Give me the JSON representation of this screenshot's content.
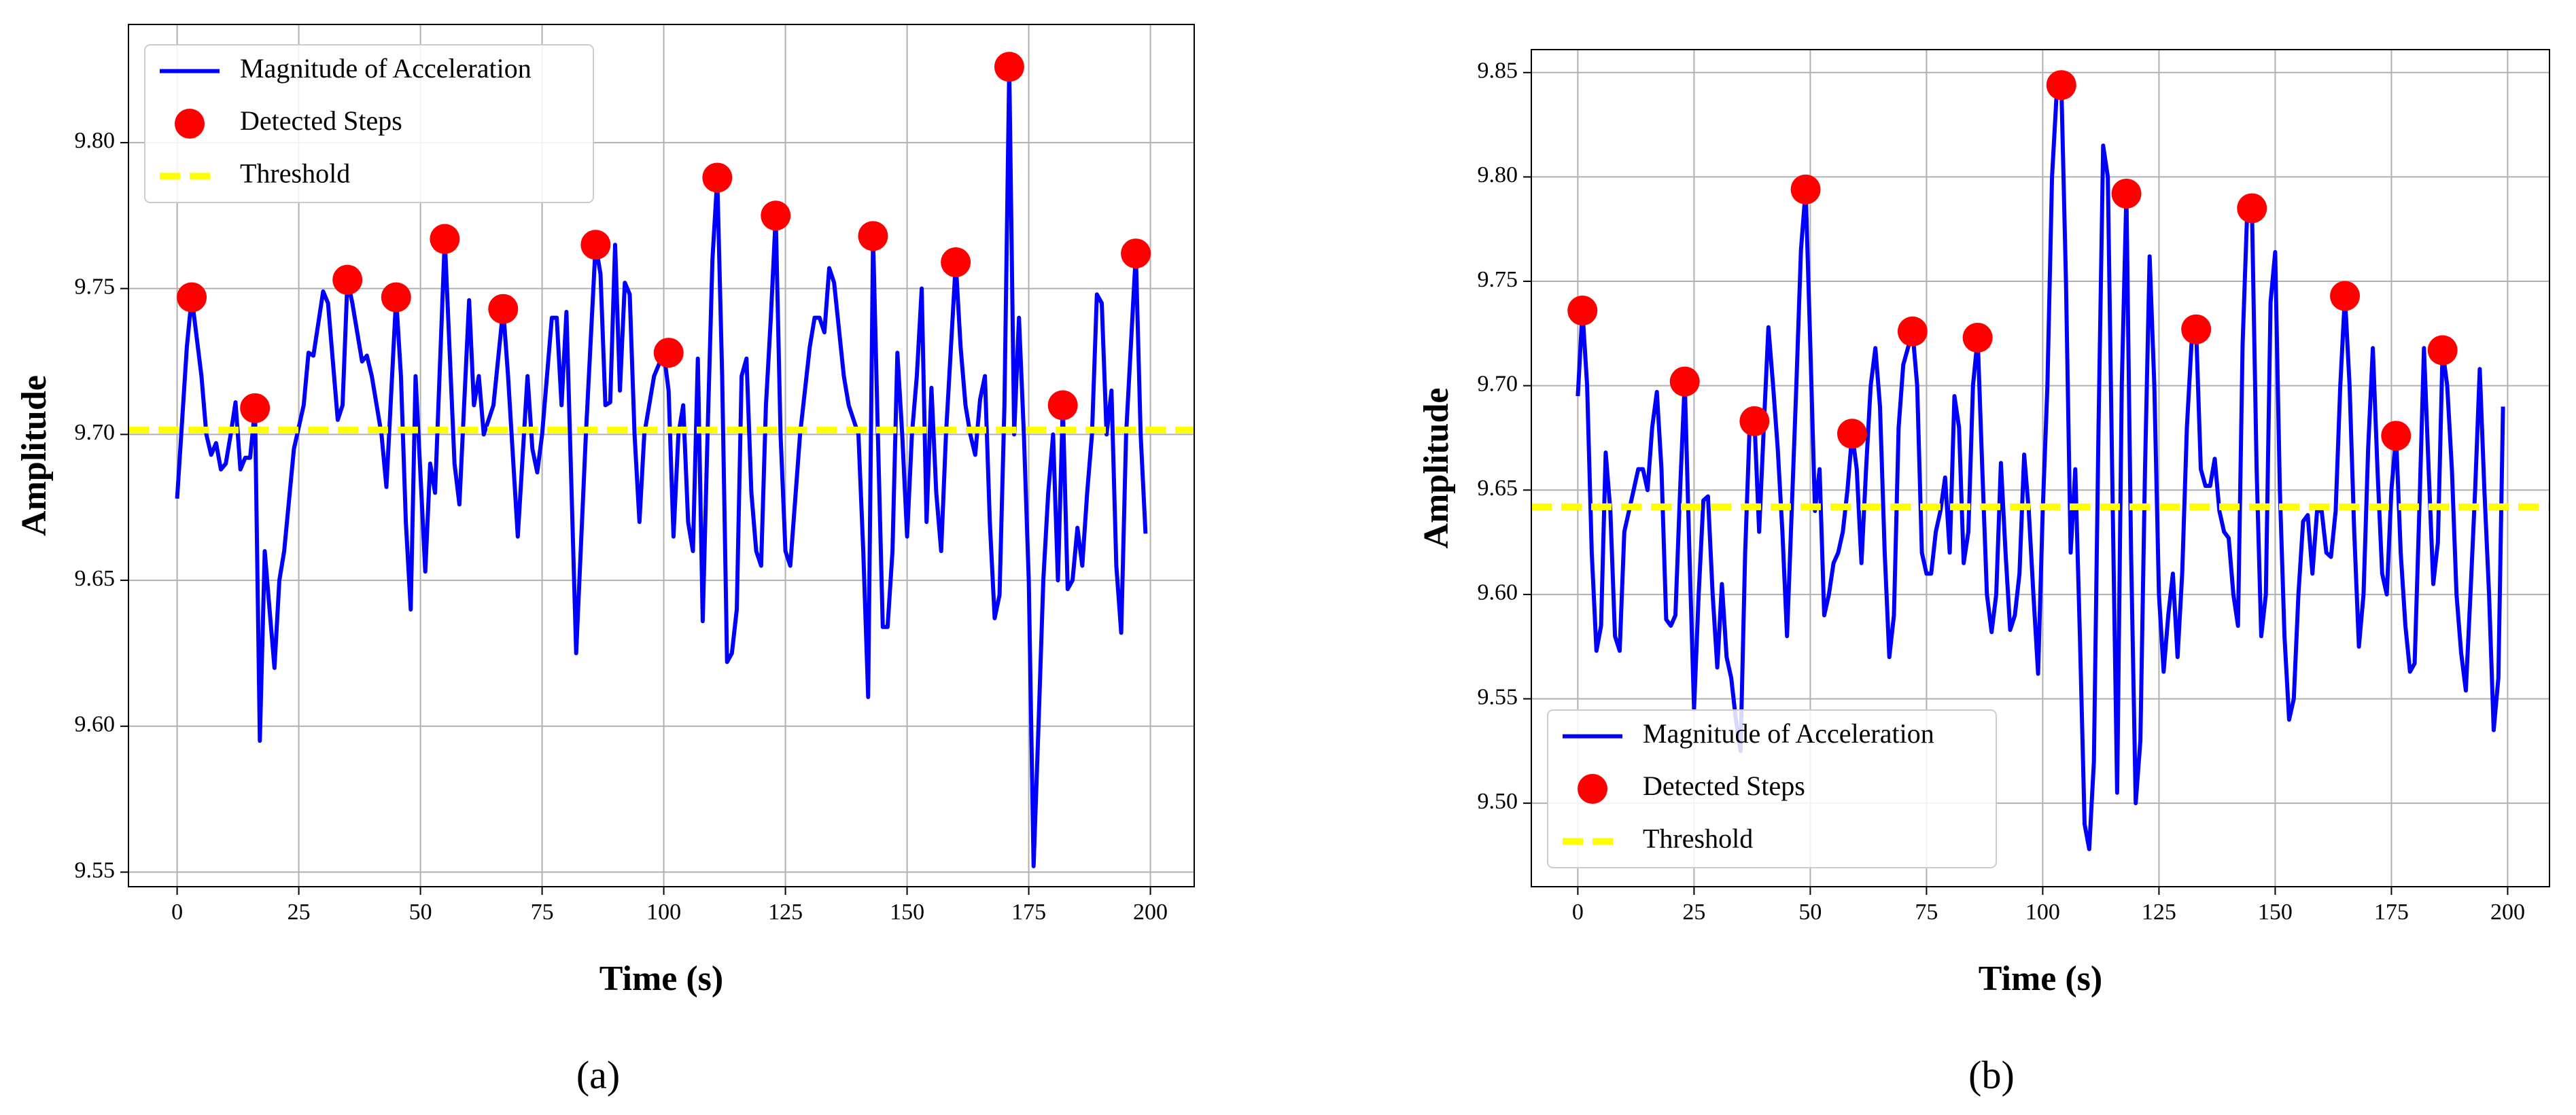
{
  "chart_data": [
    {
      "type": "line",
      "panel_label": "(a)",
      "xlabel": "Time (s)",
      "ylabel": "Amplitude",
      "xlim": [
        -10,
        209
      ],
      "ylim": [
        9.545,
        9.8405
      ],
      "xticks": [
        0,
        25,
        50,
        75,
        100,
        125,
        150,
        175,
        200
      ],
      "yticks": [
        9.55,
        {
          "value": 9.6,
          "label": "9.60"
        },
        9.65,
        {
          "value": 9.7,
          "label": "9.70"
        },
        9.75,
        {
          "value": 9.8,
          "label": "9.80"
        }
      ],
      "grid": true,
      "legend": "upper left",
      "series": [
        {
          "name": "Magnitude of Acceleration",
          "color": "#0000ff",
          "x": [
            0,
            2,
            3,
            5,
            6,
            7,
            8,
            9,
            10,
            11,
            12,
            13,
            14,
            15,
            16,
            17,
            18,
            19,
            20,
            21,
            22,
            24,
            26,
            27,
            28,
            30,
            31,
            33,
            34,
            35,
            36,
            38,
            39,
            40,
            42,
            43,
            45,
            46,
            47,
            48,
            49,
            51,
            52,
            53,
            55,
            57,
            58,
            60,
            61,
            62,
            63,
            65,
            67,
            68,
            70,
            72,
            73,
            74,
            75,
            77,
            78,
            79,
            80,
            82,
            84,
            86,
            87,
            88,
            89,
            90,
            91,
            92,
            93,
            94,
            95,
            96,
            98,
            100,
            101,
            102,
            103,
            104,
            105,
            106,
            107,
            108,
            109,
            110,
            111,
            112,
            113,
            114,
            115,
            116,
            117,
            118,
            119,
            120,
            121,
            122,
            123,
            124,
            125,
            126,
            128,
            130,
            131,
            132,
            133,
            134,
            135,
            137,
            138,
            140,
            141,
            142,
            143,
            144,
            145,
            146,
            147,
            148,
            149,
            150,
            151,
            152,
            153,
            154,
            155,
            156,
            157,
            158,
            160,
            161,
            162,
            163,
            164,
            165,
            166,
            167,
            168,
            169,
            170,
            171,
            172,
            173,
            174,
            175,
            176,
            177,
            178,
            179,
            180,
            181,
            182,
            183,
            184,
            185,
            186,
            187,
            188,
            189,
            190,
            191,
            192,
            193,
            194,
            195,
            197,
            198,
            199
          ],
          "values": [
            9.678,
            9.73,
            9.747,
            9.72,
            9.7,
            9.693,
            9.697,
            9.688,
            9.69,
            9.7,
            9.711,
            9.688,
            9.692,
            9.692,
            9.709,
            9.595,
            9.66,
            9.64,
            9.62,
            9.65,
            9.66,
            9.695,
            9.71,
            9.728,
            9.727,
            9.749,
            9.745,
            9.705,
            9.71,
            9.753,
            9.745,
            9.725,
            9.727,
            9.72,
            9.7,
            9.682,
            9.747,
            9.72,
            9.67,
            9.64,
            9.72,
            9.653,
            9.69,
            9.68,
            9.767,
            9.69,
            9.676,
            9.746,
            9.71,
            9.72,
            9.7,
            9.71,
            9.743,
            9.72,
            9.665,
            9.72,
            9.695,
            9.687,
            9.7,
            9.74,
            9.74,
            9.71,
            9.742,
            9.625,
            9.7,
            9.765,
            9.755,
            9.71,
            9.711,
            9.765,
            9.715,
            9.752,
            9.748,
            9.7,
            9.67,
            9.7,
            9.72,
            9.728,
            9.715,
            9.665,
            9.7,
            9.71,
            9.67,
            9.66,
            9.726,
            9.636,
            9.7,
            9.76,
            9.788,
            9.72,
            9.622,
            9.625,
            9.64,
            9.72,
            9.726,
            9.68,
            9.66,
            9.655,
            9.71,
            9.74,
            9.775,
            9.7,
            9.66,
            9.655,
            9.7,
            9.73,
            9.74,
            9.74,
            9.735,
            9.757,
            9.752,
            9.72,
            9.71,
            9.7,
            9.66,
            9.61,
            9.768,
            9.7,
            9.634,
            9.634,
            9.66,
            9.728,
            9.7,
            9.665,
            9.7,
            9.72,
            9.75,
            9.67,
            9.716,
            9.68,
            9.66,
            9.7,
            9.759,
            9.73,
            9.71,
            9.7,
            9.693,
            9.712,
            9.72,
            9.67,
            9.637,
            9.645,
            9.71,
            9.826,
            9.7,
            9.74,
            9.7,
            9.65,
            9.552,
            9.6,
            9.65,
            9.68,
            9.7,
            9.65,
            9.71,
            9.647,
            9.65,
            9.668,
            9.655,
            9.68,
            9.7,
            9.748,
            9.745,
            9.7,
            9.715,
            9.655,
            9.632,
            9.7,
            9.762,
            9.7,
            9.666
          ]
        },
        {
          "name": "Detected Steps",
          "color": "#ff0000",
          "x": [
            3,
            16,
            35,
            45,
            55,
            67,
            86,
            101,
            111,
            123,
            143,
            160,
            171,
            182,
            197
          ],
          "values": [
            9.747,
            9.709,
            9.753,
            9.747,
            9.767,
            9.743,
            9.765,
            9.728,
            9.788,
            9.775,
            9.768,
            9.759,
            9.826,
            9.71,
            9.762
          ]
        },
        {
          "name": "Threshold",
          "color": "#ffff00",
          "value": 9.7015
        }
      ]
    },
    {
      "type": "line",
      "panel_label": "(b)",
      "xlabel": "Time (s)",
      "ylabel": "Amplitude",
      "xlim": [
        -10,
        209
      ],
      "ylim": [
        9.46,
        9.861
      ],
      "xticks": [
        0,
        25,
        50,
        75,
        100,
        125,
        150,
        175,
        200
      ],
      "yticks": [
        {
          "value": 9.5,
          "label": "9.50"
        },
        9.55,
        {
          "value": 9.6,
          "label": "9.60"
        },
        9.65,
        {
          "value": 9.7,
          "label": "9.70"
        },
        9.75,
        {
          "value": 9.8,
          "label": "9.80"
        },
        9.85
      ],
      "grid": true,
      "legend": "lower left",
      "series": [
        {
          "name": "Magnitude of Acceleration",
          "color": "#0000ff",
          "x": [
            0,
            1,
            2,
            3,
            4,
            5,
            6,
            7,
            8,
            9,
            10,
            12,
            13,
            14,
            15,
            16,
            17,
            18,
            19,
            20,
            21,
            22,
            23,
            24,
            25,
            26,
            27,
            28,
            29,
            30,
            31,
            32,
            33,
            34,
            35,
            36,
            37,
            38,
            39,
            40,
            41,
            42,
            43,
            44,
            45,
            46,
            47,
            48,
            49,
            50,
            51,
            52,
            53,
            54,
            55,
            56,
            57,
            58,
            59,
            60,
            61,
            62,
            63,
            64,
            65,
            66,
            67,
            68,
            69,
            70,
            72,
            73,
            74,
            75,
            76,
            77,
            78,
            79,
            80,
            81,
            82,
            83,
            84,
            85,
            86,
            87,
            88,
            89,
            90,
            91,
            92,
            93,
            94,
            95,
            96,
            97,
            98,
            99,
            100,
            101,
            102,
            103,
            104,
            105,
            106,
            107,
            108,
            109,
            110,
            111,
            112,
            113,
            114,
            115,
            116,
            117,
            118,
            119,
            120,
            121,
            122,
            123,
            124,
            125,
            126,
            127,
            128,
            129,
            130,
            131,
            132,
            133,
            134,
            135,
            136,
            137,
            138,
            139,
            140,
            141,
            142,
            143,
            144,
            145,
            146,
            147,
            148,
            149,
            150,
            151,
            152,
            153,
            154,
            155,
            156,
            157,
            158,
            159,
            160,
            161,
            162,
            163,
            164,
            165,
            166,
            167,
            168,
            169,
            170,
            171,
            172,
            173,
            174,
            175,
            176,
            177,
            178,
            179,
            180,
            181,
            182,
            183,
            184,
            185,
            186,
            187,
            188,
            189,
            190,
            191,
            192,
            193,
            194,
            195,
            196,
            197,
            198,
            199
          ],
          "values": [
            9.695,
            9.736,
            9.7,
            9.62,
            9.573,
            9.585,
            9.668,
            9.64,
            9.58,
            9.573,
            9.63,
            9.65,
            9.66,
            9.66,
            9.65,
            9.68,
            9.697,
            9.66,
            9.588,
            9.585,
            9.59,
            9.65,
            9.702,
            9.62,
            9.545,
            9.6,
            9.645,
            9.647,
            9.6,
            9.565,
            9.605,
            9.57,
            9.56,
            9.54,
            9.525,
            9.62,
            9.683,
            9.683,
            9.63,
            9.68,
            9.728,
            9.7,
            9.67,
            9.63,
            9.58,
            9.64,
            9.7,
            9.765,
            9.794,
            9.72,
            9.64,
            9.66,
            9.59,
            9.6,
            9.615,
            9.62,
            9.63,
            9.65,
            9.677,
            9.66,
            9.615,
            9.66,
            9.7,
            9.718,
            9.69,
            9.62,
            9.57,
            9.59,
            9.68,
            9.71,
            9.726,
            9.7,
            9.62,
            9.61,
            9.61,
            9.63,
            9.64,
            9.656,
            9.62,
            9.695,
            9.68,
            9.615,
            9.63,
            9.7,
            9.723,
            9.66,
            9.6,
            9.582,
            9.6,
            9.663,
            9.62,
            9.583,
            9.59,
            9.61,
            9.667,
            9.64,
            9.6,
            9.562,
            9.64,
            9.7,
            9.8,
            9.84,
            9.844,
            9.75,
            9.62,
            9.66,
            9.58,
            9.49,
            9.478,
            9.52,
            9.68,
            9.815,
            9.8,
            9.65,
            9.505,
            9.7,
            9.792,
            9.62,
            9.5,
            9.53,
            9.66,
            9.762,
            9.7,
            9.6,
            9.563,
            9.59,
            9.61,
            9.57,
            9.61,
            9.68,
            9.72,
            9.727,
            9.66,
            9.652,
            9.652,
            9.665,
            9.64,
            9.63,
            9.627,
            9.6,
            9.585,
            9.72,
            9.785,
            9.785,
            9.66,
            9.58,
            9.6,
            9.74,
            9.764,
            9.65,
            9.58,
            9.54,
            9.55,
            9.6,
            9.635,
            9.638,
            9.61,
            9.64,
            9.64,
            9.62,
            9.618,
            9.64,
            9.7,
            9.743,
            9.7,
            9.63,
            9.575,
            9.6,
            9.67,
            9.718,
            9.66,
            9.61,
            9.6,
            9.65,
            9.676,
            9.62,
            9.585,
            9.563,
            9.567,
            9.64,
            9.718,
            9.66,
            9.605,
            9.625,
            9.717,
            9.7,
            9.66,
            9.6,
            9.572,
            9.554,
            9.6,
            9.65,
            9.708,
            9.65,
            9.6,
            9.535,
            9.56,
            9.69
          ]
        },
        {
          "name": "Detected Steps",
          "color": "#ff0000",
          "x": [
            1,
            23,
            38,
            49,
            59,
            72,
            86,
            104,
            118,
            133,
            145,
            165,
            176,
            186
          ],
          "values": [
            9.736,
            9.702,
            9.683,
            9.794,
            9.677,
            9.726,
            9.723,
            9.844,
            9.792,
            9.727,
            9.785,
            9.743,
            9.676,
            9.717
          ]
        },
        {
          "name": "Threshold",
          "color": "#ffff00",
          "value": 9.642
        }
      ]
    }
  ]
}
